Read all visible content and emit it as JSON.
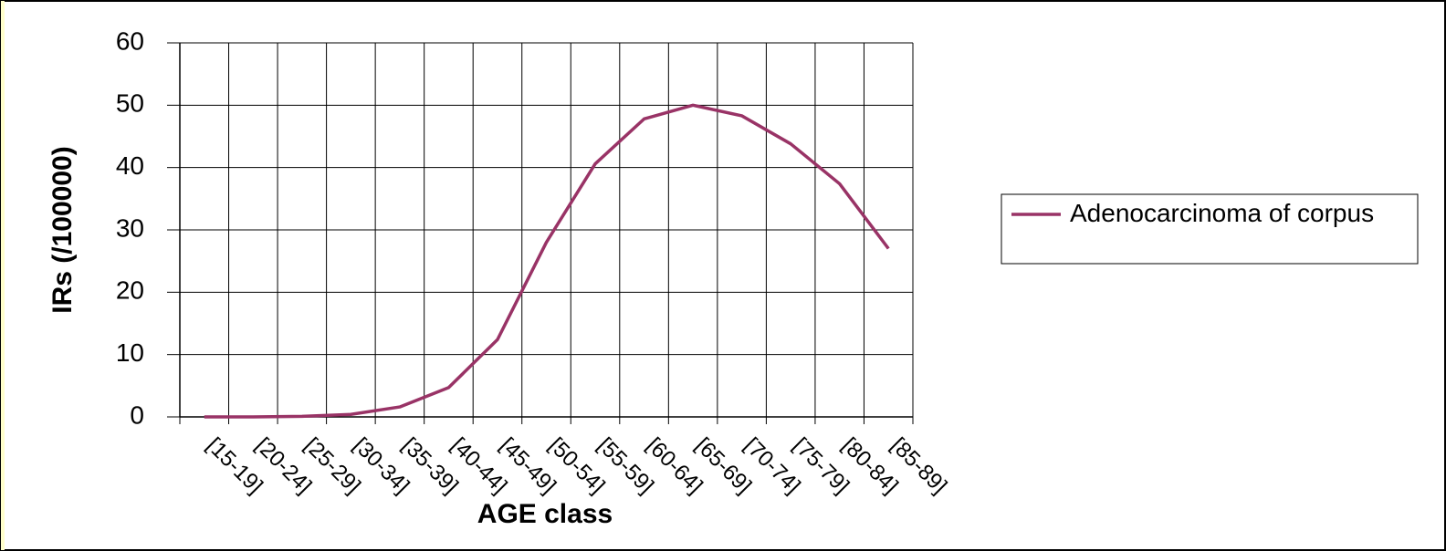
{
  "chart_data": {
    "type": "line",
    "xlabel": "AGE class",
    "ylabel": "IRs (/100000)",
    "categories": [
      "[15-19]",
      "[20-24]",
      "[25-29]",
      "[30-34]",
      "[35-39]",
      "[40-44]",
      "[45-49]",
      "[50-54]",
      "[55-59]",
      "[60-64]",
      "[65-69]",
      "[70-74]",
      "[75-79]",
      "[80-84]",
      "[85-89]"
    ],
    "series": [
      {
        "name": "Adenocarcinoma of corpus",
        "color": "#993366",
        "values": [
          0,
          0,
          0.1,
          0.4,
          1.6,
          4.7,
          12.4,
          28,
          40.6,
          47.8,
          50,
          48.3,
          43.8,
          37.4,
          27
        ]
      }
    ],
    "ylim": [
      0,
      60
    ],
    "yticks": [
      0,
      10,
      20,
      30,
      40,
      50,
      60
    ],
    "grid": true,
    "legend": "right"
  }
}
